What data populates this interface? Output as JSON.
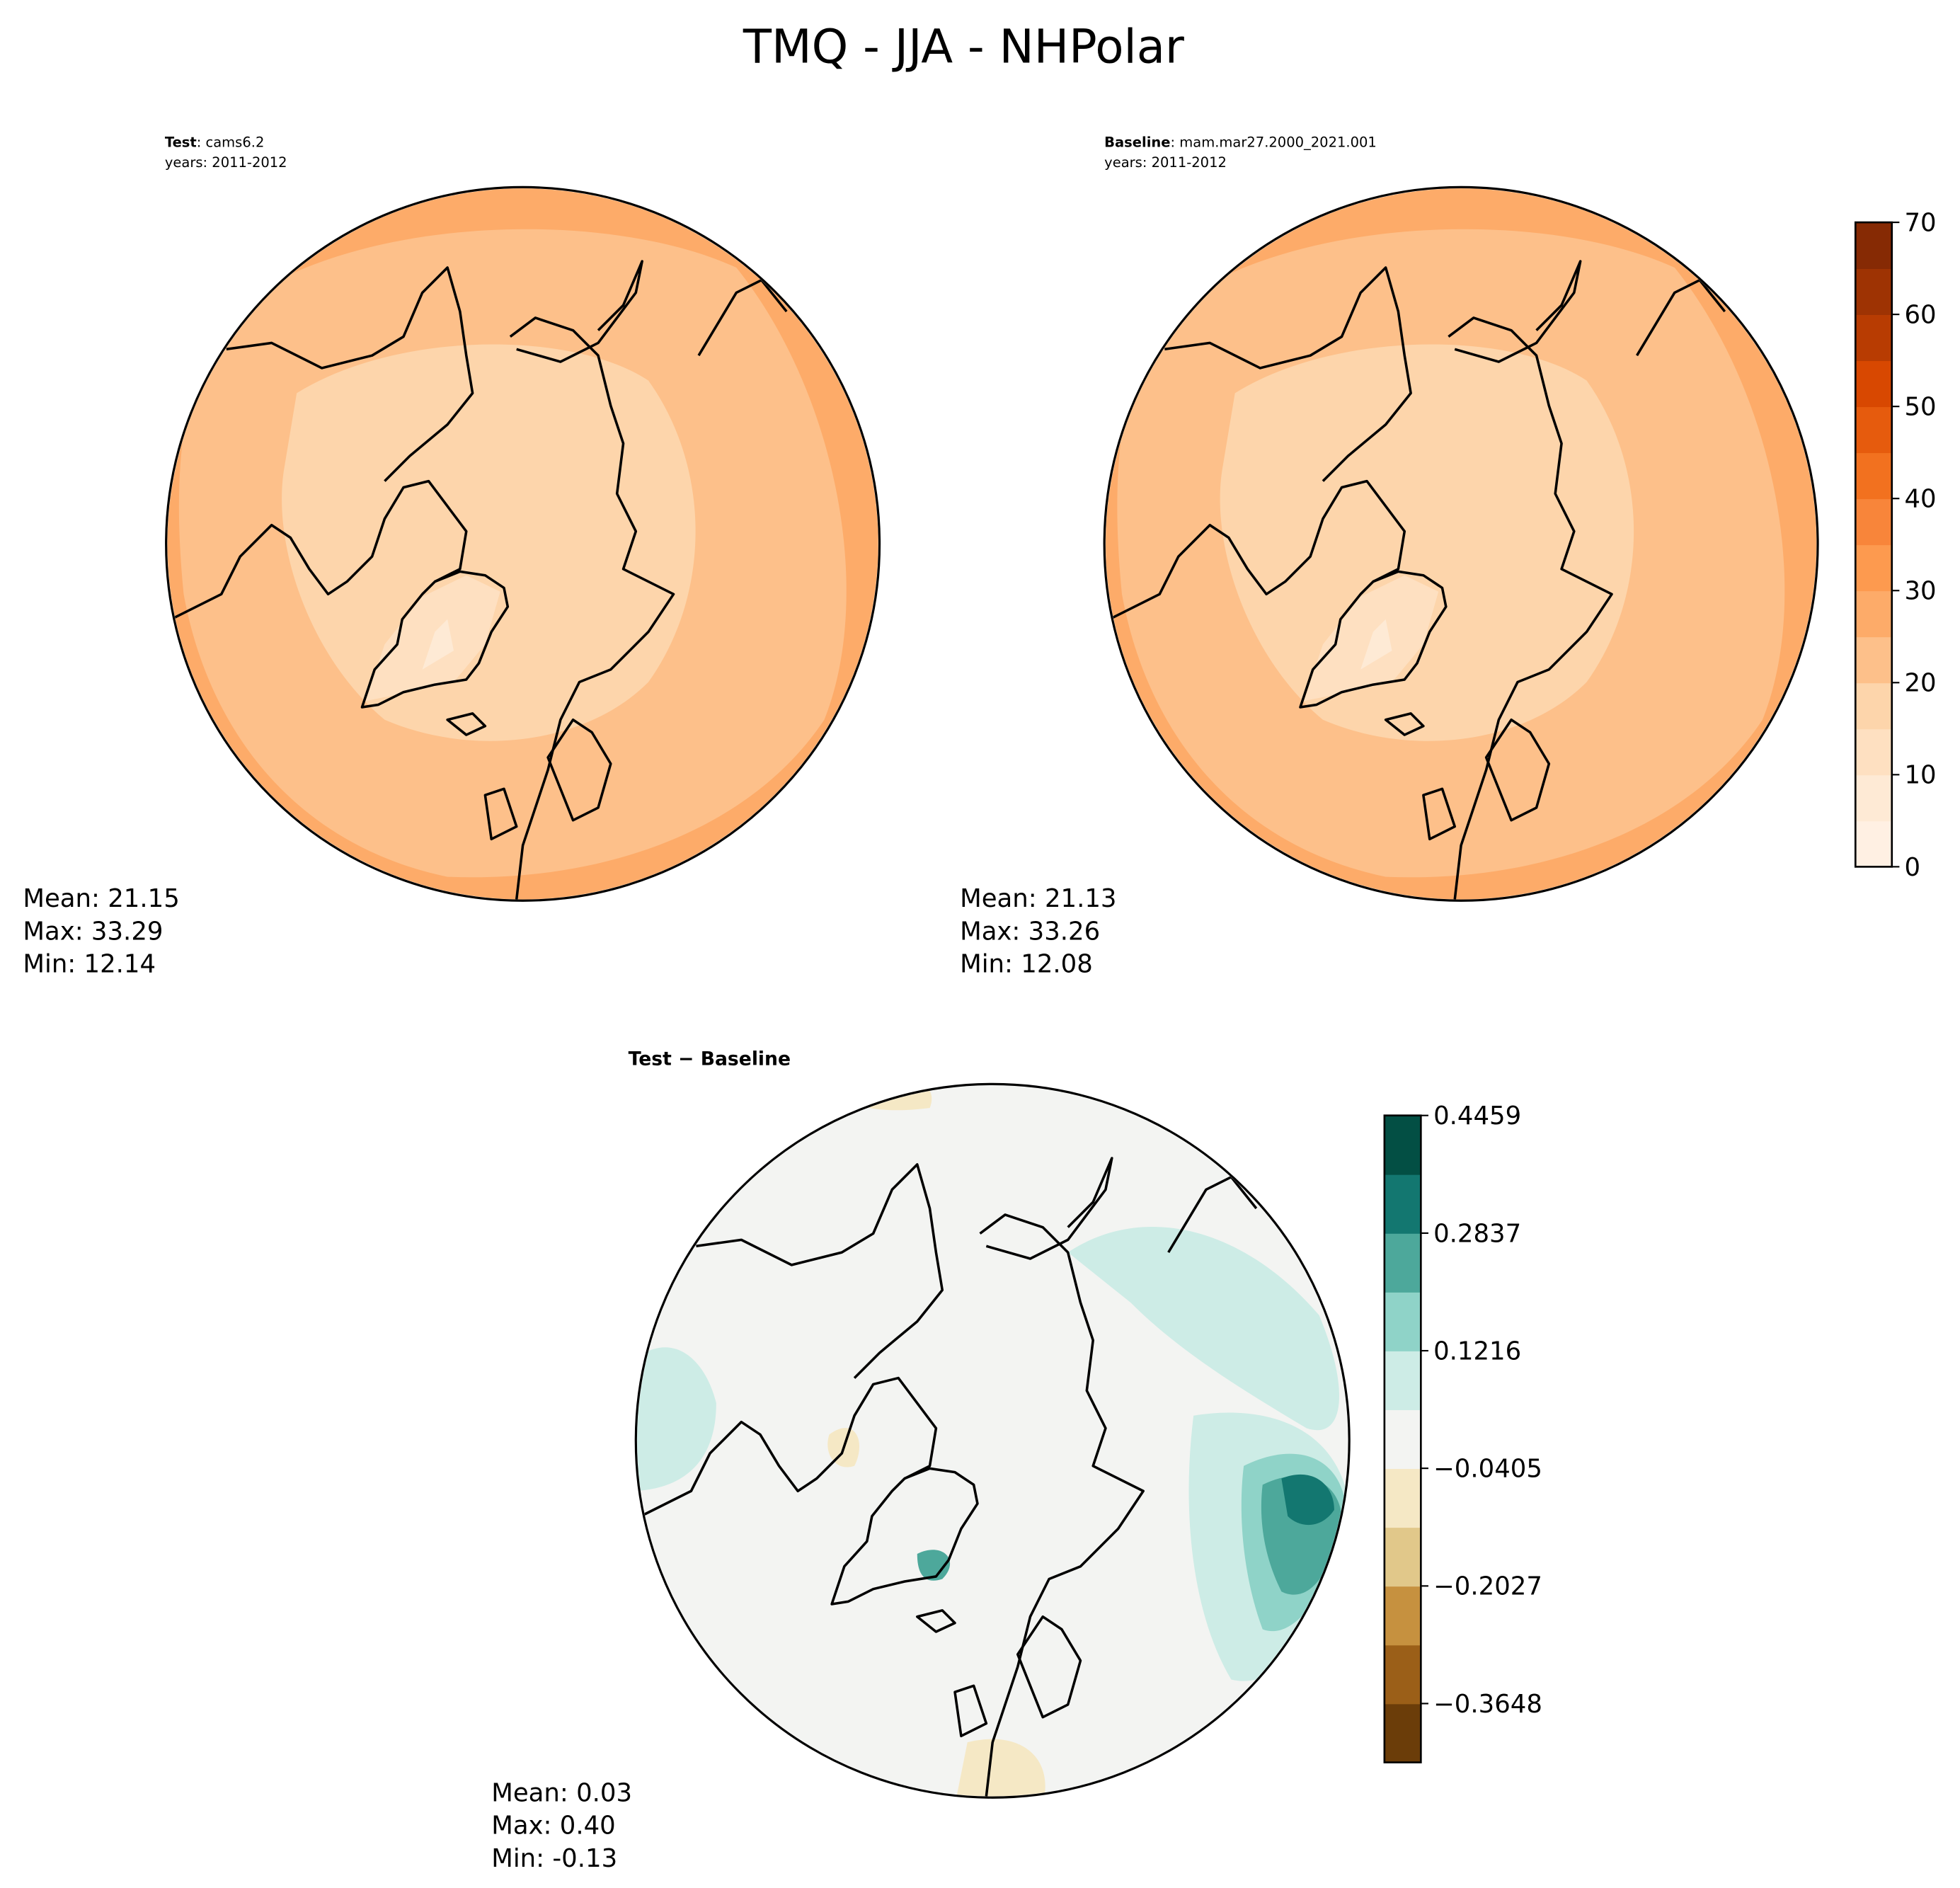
{
  "title": "TMQ - JJA - NHPolar",
  "panels": {
    "test": {
      "label_bold": "Test",
      "label_rest": ": cams6.2",
      "years": "years: 2011-2012",
      "stats": {
        "mean": "Mean: 21.15",
        "max": "Max: 33.29",
        "min": "Min: 12.14"
      }
    },
    "baseline": {
      "label_bold": "Baseline",
      "label_rest": ": mam.mar27.2000_2021.001",
      "years": "years: 2011-2012",
      "stats": {
        "mean": "Mean: 21.13",
        "max": "Max: 33.26",
        "min": "Min: 12.08"
      }
    },
    "diff": {
      "label": "Test − Baseline",
      "stats": {
        "mean": "Mean:  0.03",
        "max": "Max:  0.40",
        "min": "Min: -0.13"
      }
    }
  },
  "chart_data": [
    {
      "type": "heatmap",
      "name": "Test",
      "projection": "north-polar-stereographic",
      "colorbar": {
        "levels": [
          0,
          5,
          10,
          15,
          20,
          25,
          30,
          35,
          40,
          45,
          50,
          55,
          60,
          65,
          70
        ],
        "tick_labels": [
          "0",
          "10",
          "20",
          "30",
          "40",
          "50",
          "60",
          "70"
        ],
        "colors": [
          "#fff0e3",
          "#feead5",
          "#fee0c1",
          "#fdd5ab",
          "#fdc08a",
          "#fdab69",
          "#fd9a4f",
          "#f8853a",
          "#f2711f",
          "#e65b0d",
          "#d84801",
          "#b83c02",
          "#9e3303",
          "#862a04"
        ]
      },
      "dominant_levels": {
        "outer": 25,
        "middle": 20,
        "inner": 15,
        "greenland": 10
      }
    },
    {
      "type": "heatmap",
      "name": "Baseline",
      "projection": "north-polar-stereographic",
      "colorbar_shared_with": "Test",
      "dominant_levels": {
        "outer": 25,
        "middle": 20,
        "inner": 15,
        "greenland": 10
      }
    },
    {
      "type": "heatmap",
      "name": "Test - Baseline",
      "projection": "north-polar-stereographic",
      "colorbar": {
        "levels": [
          -0.4459,
          -0.3648,
          -0.2838,
          -0.2027,
          -0.1216,
          -0.0405,
          0.0405,
          0.1216,
          0.2027,
          0.2837,
          0.3648,
          0.4459
        ],
        "tick_values": [
          -0.3648,
          -0.2027,
          -0.0405,
          0.1216,
          0.2837,
          0.4459
        ],
        "tick_labels": [
          "−0.3648",
          "−0.2027",
          "−0.0405",
          "0.1216",
          "0.2837",
          "0.4459"
        ],
        "colors": [
          "#6b3d09",
          "#9b5f18",
          "#c6913f",
          "#e1c88a",
          "#f5e8c5",
          "#f3f4f2",
          "#cdece6",
          "#8fd3c8",
          "#4da89b",
          "#137770",
          "#034f44"
        ]
      }
    }
  ]
}
